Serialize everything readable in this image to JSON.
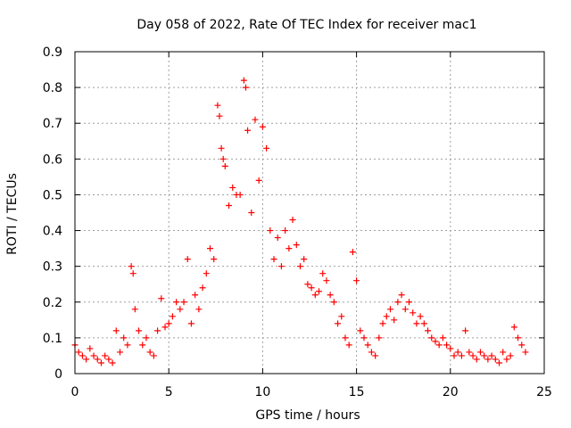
{
  "chart_data": {
    "type": "scatter",
    "title": "Day 058 of 2022, Rate Of TEC Index for receiver mac1",
    "xlabel": "GPS time / hours",
    "ylabel": "ROTI / TECUs",
    "xlim": [
      0,
      25
    ],
    "ylim": [
      0,
      0.9
    ],
    "xticks": [
      "0",
      "5",
      "10",
      "15",
      "20",
      "25"
    ],
    "yticks": [
      "0",
      "0.1",
      "0.2",
      "0.3",
      "0.4",
      "0.5",
      "0.6",
      "0.7",
      "0.8",
      "0.9"
    ],
    "grid": true,
    "marker": "+",
    "color": "#ff0000",
    "series": [
      {
        "x": [
          0.0,
          0.2,
          0.4,
          0.6,
          0.8,
          1.0,
          1.2,
          1.4,
          1.6,
          1.8,
          2.0,
          2.2,
          2.4,
          2.6,
          2.8,
          3.0,
          3.1,
          3.2,
          3.4,
          3.6,
          3.8,
          4.0,
          4.2,
          4.4,
          4.6,
          4.8,
          5.0,
          5.2,
          5.4,
          5.6,
          5.8,
          6.0,
          6.2,
          6.4,
          6.6,
          6.8,
          7.0,
          7.2,
          7.4,
          7.6,
          7.7,
          7.8,
          7.9,
          8.0,
          8.2,
          8.4,
          8.6,
          8.8,
          9.0,
          9.1,
          9.2,
          9.4,
          9.6,
          9.8,
          10.0,
          10.2,
          10.4,
          10.6,
          10.8,
          11.0,
          11.2,
          11.4,
          11.6,
          11.8,
          12.0,
          12.2,
          12.4,
          12.6,
          12.8,
          13.0,
          13.2,
          13.4,
          13.6,
          13.8,
          14.0,
          14.2,
          14.4,
          14.6,
          14.8,
          15.0,
          15.2,
          15.4,
          15.6,
          15.8,
          16.0,
          16.2,
          16.4,
          16.6,
          16.8,
          17.0,
          17.2,
          17.4,
          17.6,
          17.8,
          18.0,
          18.2,
          18.4,
          18.6,
          18.8,
          19.0,
          19.2,
          19.4,
          19.6,
          19.8,
          20.0,
          20.2,
          20.4,
          20.6,
          20.8,
          21.0,
          21.2,
          21.4,
          21.6,
          21.8,
          22.0,
          22.2,
          22.4,
          22.6,
          22.8,
          23.0,
          23.2,
          23.4,
          23.6,
          23.8,
          24.0
        ],
        "y": [
          0.08,
          0.06,
          0.05,
          0.04,
          0.07,
          0.05,
          0.04,
          0.03,
          0.05,
          0.04,
          0.03,
          0.12,
          0.06,
          0.1,
          0.08,
          0.3,
          0.28,
          0.18,
          0.12,
          0.08,
          0.1,
          0.06,
          0.05,
          0.12,
          0.21,
          0.13,
          0.14,
          0.16,
          0.2,
          0.18,
          0.2,
          0.32,
          0.14,
          0.22,
          0.18,
          0.24,
          0.28,
          0.35,
          0.32,
          0.75,
          0.72,
          0.63,
          0.6,
          0.58,
          0.47,
          0.52,
          0.5,
          0.5,
          0.82,
          0.8,
          0.68,
          0.45,
          0.71,
          0.54,
          0.69,
          0.63,
          0.4,
          0.32,
          0.38,
          0.3,
          0.4,
          0.35,
          0.43,
          0.36,
          0.3,
          0.32,
          0.25,
          0.24,
          0.22,
          0.23,
          0.28,
          0.26,
          0.22,
          0.2,
          0.14,
          0.16,
          0.1,
          0.08,
          0.34,
          0.26,
          0.12,
          0.1,
          0.08,
          0.06,
          0.05,
          0.1,
          0.14,
          0.16,
          0.18,
          0.15,
          0.2,
          0.22,
          0.18,
          0.2,
          0.17,
          0.14,
          0.16,
          0.14,
          0.12,
          0.1,
          0.09,
          0.08,
          0.1,
          0.08,
          0.07,
          0.05,
          0.06,
          0.05,
          0.12,
          0.06,
          0.05,
          0.04,
          0.06,
          0.05,
          0.04,
          0.05,
          0.04,
          0.03,
          0.06,
          0.04,
          0.05,
          0.13,
          0.1,
          0.08,
          0.06
        ]
      }
    ]
  }
}
